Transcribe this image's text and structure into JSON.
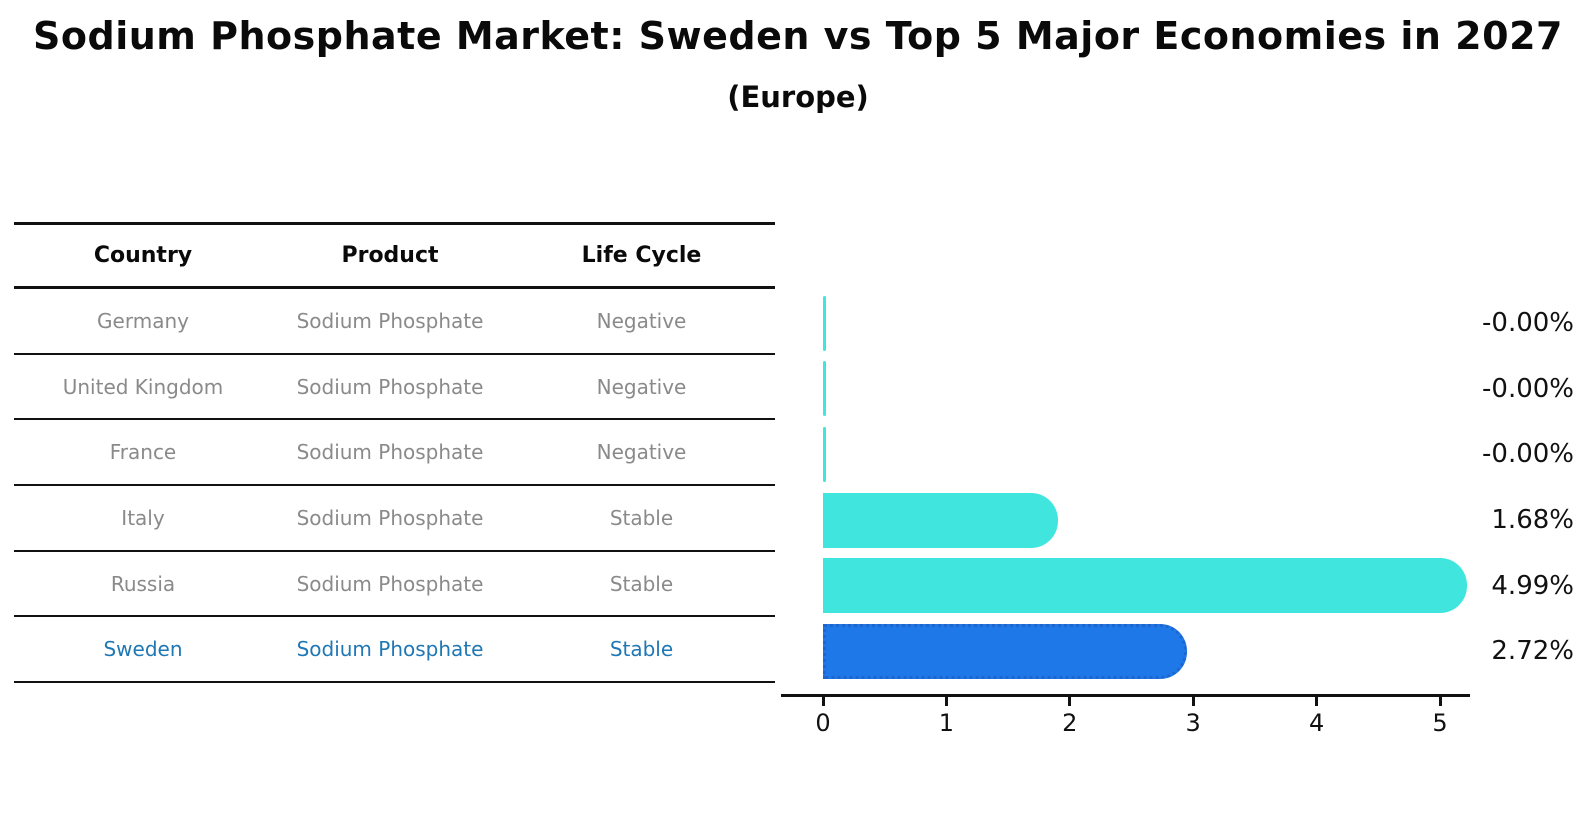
{
  "title": "Sodium Phosphate Market: Sweden vs Top 5 Major Economies in 2027",
  "subtitle": "(Europe)",
  "table": {
    "headers": {
      "country": "Country",
      "product": "Product",
      "life_cycle": "Life Cycle"
    },
    "rows": [
      {
        "country": "Germany",
        "product": "Sodium Phosphate",
        "life_cycle": "Negative",
        "highlight": false
      },
      {
        "country": "United Kingdom",
        "product": "Sodium Phosphate",
        "life_cycle": "Negative",
        "highlight": false
      },
      {
        "country": "France",
        "product": "Sodium Phosphate",
        "life_cycle": "Negative",
        "highlight": false
      },
      {
        "country": "Italy",
        "product": "Sodium Phosphate",
        "life_cycle": "Stable",
        "highlight": false
      },
      {
        "country": "Russia",
        "product": "Sodium Phosphate",
        "life_cycle": "Stable",
        "highlight": false
      },
      {
        "country": "Sweden",
        "product": "Sodium Phosphate",
        "life_cycle": "Stable",
        "highlight": true
      }
    ]
  },
  "chart_data": {
    "type": "bar",
    "orientation": "horizontal",
    "title": "Sodium Phosphate Market: Sweden vs Top 5 Major Economies in 2027",
    "subtitle": "(Europe)",
    "categories": [
      "Germany",
      "United Kingdom",
      "France",
      "Italy",
      "Russia",
      "Sweden"
    ],
    "values": [
      -0.0,
      -0.0,
      -0.0,
      1.68,
      4.99,
      2.72
    ],
    "value_labels": [
      "-0.00%",
      "-0.00%",
      "-0.00%",
      "1.68%",
      "4.99%",
      "2.72%"
    ],
    "unit": "%",
    "xticks": [
      0,
      1,
      2,
      3,
      4,
      5
    ],
    "xlim": [
      0,
      5.6
    ],
    "grid": false,
    "legend": "none",
    "bar_colors": [
      "#40E5DE",
      "#40E5DE",
      "#40E5DE",
      "#40E5DE",
      "#40E5DE",
      "#1F78E8"
    ],
    "highlight_index": 5,
    "highlight_border_color": "#1D66D0"
  },
  "colors": {
    "background": "#FFFFFF",
    "text_primary": "#111111",
    "table_text_muted": "#8A8A8A",
    "highlight_text": "#1F77B4",
    "bar_cyan": "#40E5DE",
    "bar_blue": "#1F78E8",
    "axis": "#111111"
  }
}
